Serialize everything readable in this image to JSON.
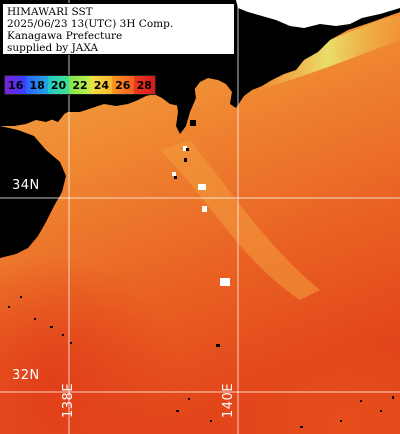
{
  "header": {
    "line1": "HIMAWARI SST",
    "line2": "2025/06/23 13(UTC) 3H Comp.",
    "line3": "Kanagawa Prefecture",
    "line4": "supplied by JAXA"
  },
  "legend": {
    "items": [
      {
        "label": "16",
        "color": "#8a2be2"
      },
      {
        "label": "18",
        "color": "#1e64ff"
      },
      {
        "label": "20",
        "color": "#22c8c8"
      },
      {
        "label": "22",
        "color": "#7ce650"
      },
      {
        "label": "24",
        "color": "#f0e040"
      },
      {
        "label": "26",
        "color": "#ff9620"
      },
      {
        "label": "28",
        "color": "#e8281e"
      }
    ]
  },
  "map": {
    "latitudes": [
      {
        "label": "34N"
      },
      {
        "label": "32N"
      }
    ],
    "longitudes": [
      {
        "label": "138E"
      },
      {
        "label": "140E"
      }
    ],
    "colors": {
      "land": "#000000",
      "cloud": "#ffffff",
      "grid": "#ffffff",
      "sst_cool": "#f2a040",
      "sst_mid": "#ee7a2a",
      "sst_warm": "#e84e1e",
      "sst_cool_front": "#d8e060"
    }
  }
}
